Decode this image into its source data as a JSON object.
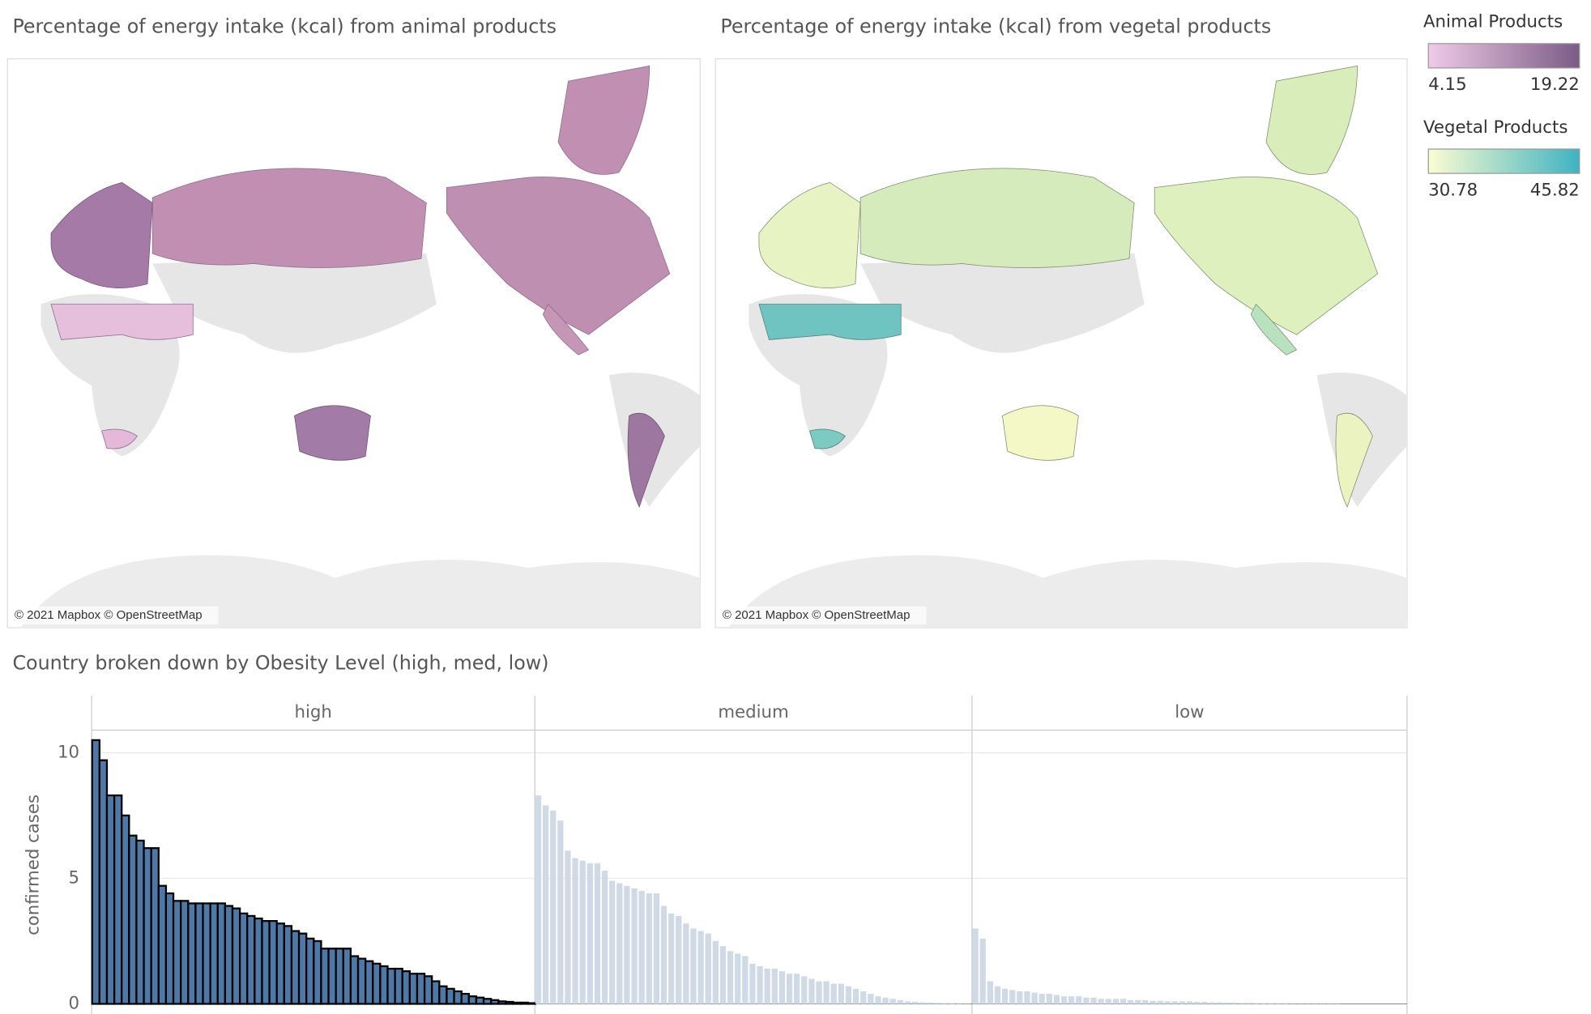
{
  "maps": [
    {
      "title": "Percentage of energy intake (kcal) from animal products",
      "attribution": "© 2021 Mapbox © OpenStreetMap"
    },
    {
      "title": "Percentage of energy intake (kcal) from vegetal products",
      "attribution": "© 2021 Mapbox © OpenStreetMap"
    }
  ],
  "legends": [
    {
      "title": "Animal Products",
      "min": 4.15,
      "max": 19.22,
      "colors": [
        "#efcbe7",
        "#7b5b86"
      ]
    },
    {
      "title": "Vegetal Products",
      "min": 30.78,
      "max": 45.82,
      "colors": [
        "#fbfcd2",
        "#3fb3c0"
      ]
    }
  ],
  "chart_data": {
    "type": "bar",
    "title": "Country broken down by Obesity Level (high, med, low)",
    "y_label": "confirmed cases",
    "ylim": [
      0,
      10.9
    ],
    "yticks": [
      0,
      5,
      10
    ],
    "grid": true,
    "series": [
      {
        "name": "high",
        "color": "#4e79a7",
        "stroke": "#000000",
        "values": [
          10.5,
          9.7,
          8.3,
          8.3,
          7.5,
          6.7,
          6.5,
          6.2,
          6.2,
          4.7,
          4.4,
          4.1,
          4.1,
          4.0,
          4.0,
          4.0,
          4.0,
          4.0,
          3.9,
          3.8,
          3.6,
          3.5,
          3.4,
          3.3,
          3.3,
          3.2,
          3.1,
          2.9,
          2.8,
          2.6,
          2.5,
          2.2,
          2.2,
          2.2,
          2.2,
          1.9,
          1.8,
          1.7,
          1.6,
          1.5,
          1.4,
          1.4,
          1.3,
          1.2,
          1.2,
          1.1,
          0.9,
          0.7,
          0.6,
          0.5,
          0.4,
          0.3,
          0.25,
          0.2,
          0.15,
          0.1,
          0.08,
          0.05,
          0.05,
          0.03
        ]
      },
      {
        "name": "medium",
        "color": "#d0dae6",
        "values": [
          8.3,
          7.9,
          7.7,
          7.3,
          6.1,
          5.8,
          5.7,
          5.6,
          5.6,
          5.3,
          4.9,
          4.8,
          4.7,
          4.6,
          4.5,
          4.4,
          4.4,
          3.9,
          3.6,
          3.5,
          3.2,
          3.0,
          2.9,
          2.8,
          2.5,
          2.3,
          2.1,
          2.0,
          1.9,
          1.6,
          1.5,
          1.4,
          1.4,
          1.3,
          1.2,
          1.2,
          1.1,
          1.0,
          0.9,
          0.9,
          0.8,
          0.8,
          0.7,
          0.6,
          0.5,
          0.4,
          0.3,
          0.25,
          0.2,
          0.15,
          0.1,
          0.08,
          0.06,
          0.05,
          0.04,
          0.03,
          0.02,
          0.02,
          0.01
        ]
      },
      {
        "name": "low",
        "color": "#d0dae6",
        "values": [
          3.0,
          2.6,
          0.9,
          0.7,
          0.6,
          0.55,
          0.5,
          0.5,
          0.45,
          0.4,
          0.4,
          0.35,
          0.3,
          0.3,
          0.3,
          0.25,
          0.25,
          0.2,
          0.2,
          0.2,
          0.2,
          0.15,
          0.15,
          0.15,
          0.12,
          0.12,
          0.1,
          0.1,
          0.1,
          0.1,
          0.08,
          0.08,
          0.06,
          0.06,
          0.05,
          0.05,
          0.04,
          0.04,
          0.03,
          0.03,
          0.02,
          0.02,
          0.02,
          0.01,
          0.01,
          0.01,
          0.01,
          0.01,
          0.01,
          0.01
        ]
      }
    ]
  }
}
